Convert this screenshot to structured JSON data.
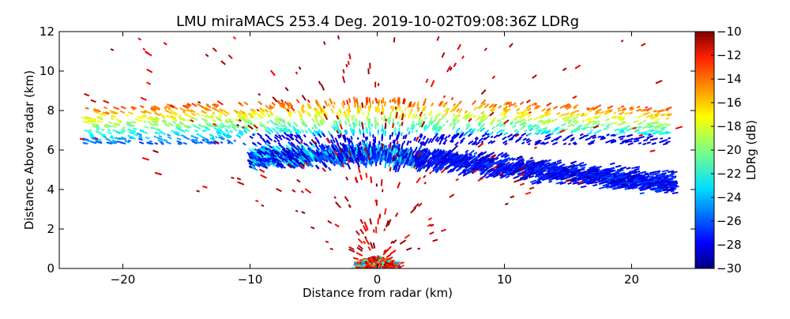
{
  "chart_data": {
    "type": "heatmap",
    "title": "LMU miraMACS 253.4 Deg. 2019-10-02T09:08:36Z  LDRg",
    "xlabel": "Distance from radar (km)",
    "ylabel": "Distance Above radar  (km)",
    "xlim": [
      -25,
      25
    ],
    "ylim": [
      0,
      12
    ],
    "x_ticks": [
      "−20",
      "−10",
      "0",
      "10",
      "20"
    ],
    "x_tick_values": [
      -20,
      -10,
      0,
      10,
      20
    ],
    "y_ticks": [
      "0",
      "2",
      "4",
      "6",
      "8",
      "10",
      "12"
    ],
    "y_tick_values": [
      0,
      2,
      4,
      6,
      8,
      10,
      12
    ],
    "colorbar": {
      "label": "LDRg (dB)",
      "range": [
        -30,
        -10
      ],
      "ticks": [
        "−10",
        "−12",
        "−14",
        "−16",
        "−18",
        "−20",
        "−22",
        "−24",
        "−26",
        "−28",
        "−30"
      ],
      "tick_values": [
        -10,
        -12,
        -14,
        -16,
        -18,
        -20,
        -22,
        -24,
        -26,
        -28,
        -30
      ],
      "colormap": "jet"
    },
    "grid": false,
    "features": [
      {
        "name": "main ice cloud layer",
        "x_range": [
          -10,
          23.5
        ],
        "z_center_at_x0": 5.8,
        "z_center_at_x23": 4.3,
        "ldr_typical": -28
      },
      {
        "name": "upper cloud edge",
        "x_range": [
          -23,
          23
        ],
        "z_range": [
          7.5,
          9.0
        ],
        "ldr_typical": -20
      },
      {
        "name": "near-ground clutter",
        "x_range": [
          -3,
          3
        ],
        "z_range": [
          0,
          0.6
        ],
        "ldr_typical": -12
      },
      {
        "name": "sparse speckle",
        "x_range": [
          -24,
          24
        ],
        "z_range": [
          0,
          12
        ],
        "ldr_typical": -10
      }
    ]
  }
}
